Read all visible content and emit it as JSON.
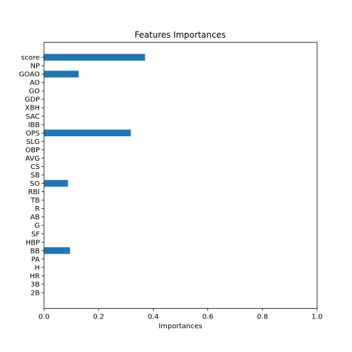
{
  "chart_data": {
    "type": "bar",
    "orientation": "horizontal",
    "title": "Features Importances",
    "xlabel": "Importances",
    "ylabel": "",
    "xlim": [
      0.0,
      1.0
    ],
    "x_ticks": [
      "0.0",
      "0.2",
      "0.4",
      "0.6",
      "0.8",
      "1.0"
    ],
    "grid": false,
    "bar_color": "#1f77b4",
    "categories": [
      "score",
      "NP",
      "GOAO",
      "AO",
      "GO",
      "GDP",
      "XBH",
      "SAC",
      "IBB",
      "OPS",
      "SLG",
      "OBP",
      "AVG",
      "CS",
      "SB",
      "SO",
      "RBI",
      "TB",
      "R",
      "AB",
      "G",
      "SF",
      "HBP",
      "BB",
      "PA",
      "H",
      "HR",
      "3B",
      "2B"
    ],
    "values": [
      0.37,
      0.0,
      0.127,
      0.0,
      0.0,
      0.0,
      0.0,
      0.0,
      0.0,
      0.318,
      0.0,
      0.0,
      0.0,
      0.0,
      0.0,
      0.088,
      0.0,
      0.0,
      0.0,
      0.0,
      0.0,
      0.0,
      0.0,
      0.095,
      0.0,
      0.0,
      0.0,
      0.0,
      0.0
    ]
  }
}
